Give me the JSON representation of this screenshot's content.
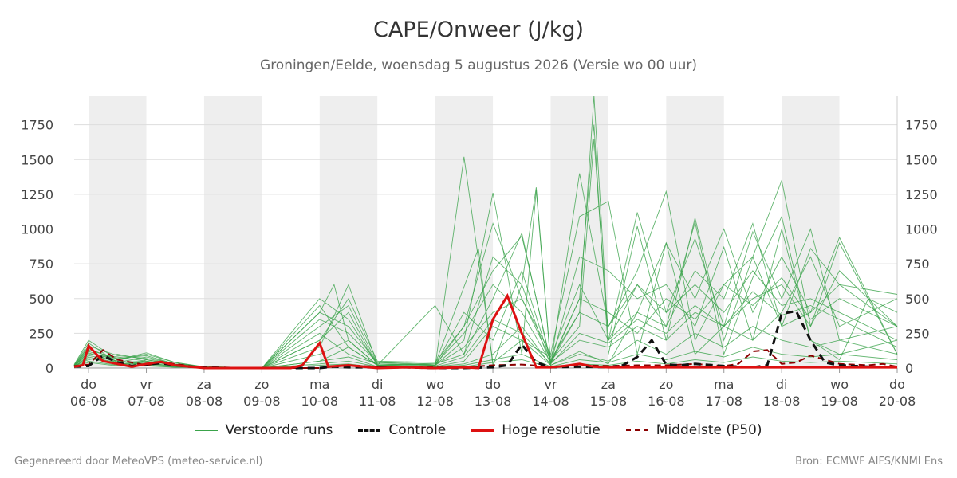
{
  "title": "CAPE/Onweer (J/kg)",
  "subtitle": "Groningen/Eelde, woensdag  5 augustus 2026 (Versie wo 00 uur)",
  "footer": {
    "left": "Gegenereerd door MeteoVPS (meteo-service.nl)",
    "right": "Bron: ECMWF AIFS/KNMI Ens"
  },
  "colors": {
    "ensemble": "#3aa34a",
    "control": "#111111",
    "high_res": "#dd1111",
    "median": "#8b0000",
    "weekend_shade": "#eeeeee",
    "grid": "#dddddd"
  },
  "legend": {
    "ensemble": "Verstoorde runs",
    "control": "Controle",
    "high_res": "Hoge resolutie",
    "median": "Middelste (P50)"
  },
  "chart_data": {
    "type": "line",
    "x_unit": "days",
    "x_range": [
      5.75,
      20.0
    ],
    "ylim": [
      0,
      1960
    ],
    "yticks": [
      0,
      250,
      500,
      750,
      1000,
      1250,
      1500,
      1750
    ],
    "grid": true,
    "legend_position": "bottom",
    "x_ticks": [
      {
        "x": 6,
        "day": "do",
        "date": "06-08"
      },
      {
        "x": 7,
        "day": "vr",
        "date": "07-08"
      },
      {
        "x": 8,
        "day": "za",
        "date": "08-08"
      },
      {
        "x": 9,
        "day": "zo",
        "date": "09-08"
      },
      {
        "x": 10,
        "day": "ma",
        "date": "10-08"
      },
      {
        "x": 11,
        "day": "di",
        "date": "11-08"
      },
      {
        "x": 12,
        "day": "wo",
        "date": "12-08"
      },
      {
        "x": 13,
        "day": "do",
        "date": "13-08"
      },
      {
        "x": 14,
        "day": "vr",
        "date": "14-08"
      },
      {
        "x": 15,
        "day": "za",
        "date": "15-08"
      },
      {
        "x": 16,
        "day": "zo",
        "date": "16-08"
      },
      {
        "x": 17,
        "day": "ma",
        "date": "17-08"
      },
      {
        "x": 18,
        "day": "di",
        "date": "18-08"
      },
      {
        "x": 19,
        "day": "wo",
        "date": "19-08"
      },
      {
        "x": 20,
        "day": "do",
        "date": "20-08"
      }
    ],
    "shaded_bands": [
      [
        6,
        7
      ],
      [
        8,
        9
      ],
      [
        10,
        11
      ],
      [
        12,
        13
      ],
      [
        14,
        15
      ],
      [
        16,
        17
      ],
      [
        18,
        19
      ]
    ],
    "control": {
      "x": [
        5.75,
        6,
        6.25,
        6.5,
        6.75,
        7,
        7.25,
        7.5,
        7.75,
        8,
        8.5,
        9,
        9.5,
        10,
        10.25,
        10.5,
        11,
        11.5,
        12,
        12.5,
        13,
        13.25,
        13.5,
        13.75,
        14,
        14.5,
        15,
        15.25,
        15.5,
        15.75,
        16,
        16.25,
        16.5,
        17,
        17.5,
        17.75,
        18,
        18.25,
        18.5,
        18.75,
        19,
        19.5,
        20
      ],
      "y": [
        10,
        15,
        90,
        40,
        15,
        25,
        35,
        20,
        10,
        5,
        0,
        0,
        0,
        0,
        10,
        5,
        5,
        5,
        0,
        0,
        5,
        20,
        170,
        40,
        5,
        10,
        5,
        20,
        80,
        200,
        25,
        20,
        30,
        15,
        5,
        20,
        390,
        410,
        200,
        40,
        20,
        10,
        5
      ]
    },
    "high_res": {
      "x": [
        5.75,
        5.9,
        6,
        6.25,
        6.5,
        6.75,
        7,
        7.25,
        7.5,
        7.75,
        8,
        8.5,
        9,
        9.5,
        9.7,
        10,
        10.15,
        10.5,
        10.75,
        11,
        11.5,
        12,
        12.5,
        12.75,
        13,
        13.25,
        13.5,
        13.75,
        14,
        14.25,
        14.5,
        14.75,
        15,
        15.5,
        16,
        16.5,
        17,
        17.5,
        18,
        18.5,
        19,
        19.5,
        20
      ],
      "y": [
        10,
        20,
        160,
        50,
        30,
        10,
        30,
        45,
        20,
        10,
        0,
        0,
        0,
        0,
        20,
        180,
        10,
        20,
        10,
        0,
        5,
        0,
        5,
        0,
        350,
        520,
        250,
        5,
        5,
        15,
        30,
        10,
        5,
        5,
        5,
        5,
        5,
        5,
        5,
        5,
        5,
        5,
        5
      ]
    },
    "median": {
      "x": [
        5.75,
        6,
        6.25,
        6.5,
        6.75,
        7,
        7.25,
        7.5,
        7.75,
        8,
        8.5,
        9,
        9.5,
        10,
        10.5,
        11,
        11.5,
        12,
        12.5,
        13,
        13.5,
        14,
        14.5,
        15,
        15.5,
        16,
        16.5,
        17,
        17.25,
        17.5,
        17.75,
        18,
        18.25,
        18.5,
        18.75,
        19,
        19.5,
        19.75,
        20
      ],
      "y": [
        15,
        25,
        130,
        60,
        40,
        20,
        40,
        30,
        15,
        5,
        0,
        0,
        0,
        0,
        20,
        10,
        10,
        5,
        5,
        20,
        25,
        10,
        20,
        15,
        20,
        20,
        30,
        15,
        30,
        120,
        130,
        30,
        40,
        90,
        60,
        30,
        20,
        30,
        10
      ]
    },
    "series": [
      {
        "x": [
          5.75,
          6,
          6.25,
          6.5,
          6.75,
          7,
          7.5,
          8,
          9,
          10,
          10.5,
          11,
          12,
          12.5,
          13,
          13.5,
          14,
          14.5,
          15,
          15.5,
          16,
          16.5,
          17,
          17.5,
          18,
          18.5,
          19,
          19.5,
          20
        ],
        "y": [
          20,
          150,
          60,
          40,
          20,
          60,
          30,
          10,
          0,
          50,
          150,
          20,
          10,
          1520,
          40,
          200,
          20,
          120,
          30,
          400,
          900,
          100,
          300,
          200,
          1000,
          200,
          60,
          500,
          400
        ]
      },
      {
        "x": [
          5.75,
          6,
          6.5,
          7,
          7.5,
          8,
          9,
          10,
          10.25,
          10.5,
          11,
          12,
          12.75,
          13,
          13.5,
          13.75,
          14,
          14.5,
          14.75,
          15,
          15.5,
          16,
          16.5,
          17,
          17.5,
          18,
          18.5,
          19,
          20
        ],
        "y": [
          10,
          120,
          50,
          30,
          20,
          5,
          0,
          400,
          600,
          200,
          20,
          30,
          860,
          20,
          600,
          1300,
          40,
          400,
          1960,
          200,
          600,
          300,
          1050,
          100,
          650,
          1090,
          200,
          100,
          200
        ]
      },
      {
        "x": [
          5.75,
          6,
          6.5,
          7,
          7.5,
          8,
          9,
          10,
          10.5,
          11,
          12,
          12.5,
          13,
          13.5,
          13.75,
          14,
          14.5,
          14.75,
          15,
          15.5,
          16,
          16.5,
          17,
          17.5,
          18,
          18.5,
          19,
          20
        ],
        "y": [
          15,
          100,
          80,
          50,
          20,
          5,
          0,
          300,
          450,
          30,
          20,
          200,
          1260,
          100,
          1280,
          30,
          500,
          1750,
          100,
          1020,
          200,
          1080,
          200,
          800,
          1350,
          300,
          900,
          100
        ]
      },
      {
        "x": [
          5.75,
          6,
          6.5,
          7,
          7.5,
          8,
          9,
          10,
          10.5,
          11,
          12,
          12.5,
          13,
          13.5,
          14,
          14.5,
          14.75,
          15,
          15.5,
          16,
          16.5,
          17,
          17.5,
          18,
          18.5,
          19,
          20
        ],
        "y": [
          20,
          180,
          40,
          80,
          30,
          10,
          0,
          200,
          500,
          50,
          40,
          300,
          700,
          950,
          50,
          300,
          1650,
          200,
          1120,
          400,
          930,
          300,
          980,
          500,
          1000,
          200,
          300
        ]
      },
      {
        "x": [
          5.75,
          6,
          6.5,
          7,
          7.5,
          8,
          9,
          10,
          10.5,
          11,
          12,
          12.5,
          13,
          13.5,
          14,
          14.5,
          15,
          15.5,
          16,
          16.5,
          17,
          17.5,
          18,
          18.5,
          19,
          20
        ],
        "y": [
          10,
          80,
          30,
          40,
          10,
          5,
          0,
          500,
          350,
          20,
          450,
          100,
          800,
          600,
          20,
          1400,
          300,
          700,
          1270,
          200,
          600,
          800,
          300,
          860,
          600,
          300
        ]
      },
      {
        "x": [
          5.75,
          6,
          6.5,
          7,
          7.5,
          8,
          9,
          10,
          10.5,
          11,
          12,
          12.5,
          13,
          13.5,
          14,
          14.5,
          15,
          15.5,
          16,
          16.5,
          17,
          17.5,
          18,
          18.5,
          19,
          20
        ],
        "y": [
          25,
          200,
          60,
          100,
          40,
          10,
          0,
          150,
          600,
          30,
          20,
          300,
          1040,
          500,
          100,
          1090,
          1200,
          100,
          900,
          500,
          1000,
          400,
          800,
          400,
          940,
          100
        ]
      },
      {
        "x": [
          5.75,
          6,
          6.5,
          7,
          7.5,
          8,
          9,
          10,
          10.5,
          11,
          12,
          12.5,
          13,
          13.5,
          14,
          14.5,
          15,
          15.5,
          16,
          16.5,
          17,
          17.5,
          18,
          18.5,
          19,
          20
        ],
        "y": [
          15,
          60,
          100,
          60,
          20,
          5,
          0,
          400,
          300,
          40,
          30,
          100,
          500,
          970,
          30,
          800,
          700,
          500,
          600,
          300,
          870,
          200,
          400,
          800,
          300,
          500
        ]
      },
      {
        "x": [
          5.75,
          6,
          6.5,
          7,
          7.5,
          8,
          9,
          10,
          10.5,
          11,
          12,
          12.5,
          13,
          13.5,
          14,
          14.5,
          15,
          15.5,
          16,
          16.5,
          17,
          17.5,
          18,
          18.5,
          19,
          20
        ],
        "y": [
          10,
          90,
          50,
          20,
          10,
          5,
          0,
          100,
          200,
          20,
          10,
          50,
          300,
          200,
          80,
          600,
          200,
          400,
          300,
          700,
          500,
          1040,
          300,
          400,
          600,
          530
        ]
      },
      {
        "x": [
          5.75,
          6,
          6.5,
          7,
          7.5,
          8,
          9,
          10,
          10.5,
          11,
          12,
          12.5,
          13,
          13.5,
          14,
          14.5,
          15,
          15.5,
          16,
          16.5,
          17,
          17.5,
          18,
          18.5,
          19,
          20
        ],
        "y": [
          20,
          110,
          40,
          50,
          20,
          5,
          0,
          250,
          100,
          30,
          20,
          400,
          200,
          700,
          40,
          200,
          150,
          300,
          200,
          400,
          300,
          500,
          600,
          300,
          700,
          300
        ]
      },
      {
        "x": [
          5.75,
          6,
          6.5,
          7,
          7.5,
          8,
          9,
          10,
          10.5,
          11,
          12,
          12.5,
          13,
          13.5,
          14,
          14.5,
          15,
          15.5,
          16,
          16.5,
          17,
          17.5,
          18,
          18.5,
          19,
          20
        ],
        "y": [
          10,
          70,
          30,
          30,
          10,
          5,
          0,
          50,
          80,
          10,
          10,
          30,
          100,
          300,
          20,
          100,
          50,
          200,
          100,
          250,
          150,
          300,
          200,
          150,
          200,
          100
        ]
      },
      {
        "x": [
          5.75,
          6,
          6.5,
          7,
          7.5,
          8,
          9,
          10,
          10.5,
          11,
          12,
          12.5,
          13,
          13.5,
          14,
          14.5,
          15,
          15.5,
          16,
          16.5,
          17,
          17.5,
          18,
          18.5,
          19,
          20
        ],
        "y": [
          15,
          130,
          70,
          90,
          30,
          10,
          0,
          350,
          250,
          40,
          20,
          150,
          400,
          500,
          60,
          400,
          300,
          600,
          400,
          600,
          400,
          700,
          450,
          500,
          400,
          200
        ]
      },
      {
        "x": [
          5.75,
          6,
          6.5,
          7,
          7.5,
          8,
          9,
          10,
          10.5,
          11,
          12,
          12.5,
          13,
          13.5,
          14,
          14.5,
          15,
          15.5,
          16,
          16.5,
          17,
          17.5,
          18,
          18.5,
          19,
          20
        ],
        "y": [
          10,
          50,
          20,
          20,
          5,
          5,
          0,
          30,
          50,
          10,
          5,
          20,
          60,
          100,
          10,
          60,
          40,
          100,
          60,
          120,
          80,
          150,
          100,
          80,
          100,
          60
        ]
      },
      {
        "x": [
          5.75,
          6,
          6.5,
          7,
          7.5,
          8,
          9,
          10,
          10.5,
          11,
          12,
          12.5,
          13,
          13.5,
          14,
          14.5,
          15,
          15.5,
          16,
          16.5,
          17,
          17.5,
          18,
          18.5,
          19,
          20
        ],
        "y": [
          20,
          160,
          90,
          70,
          30,
          10,
          0,
          450,
          150,
          20,
          30,
          250,
          600,
          400,
          40,
          500,
          400,
          250,
          500,
          350,
          600,
          450,
          650,
          350,
          500,
          300
        ]
      },
      {
        "x": [
          5.75,
          6,
          6.5,
          7,
          7.5,
          8,
          9,
          10,
          10.5,
          11,
          12,
          12.5,
          13,
          13.5,
          14,
          14.5,
          15,
          15.5,
          16,
          16.5,
          17,
          17.5,
          18,
          18.5,
          19,
          20
        ],
        "y": [
          10,
          40,
          15,
          15,
          5,
          5,
          0,
          20,
          30,
          5,
          5,
          10,
          40,
          60,
          5,
          30,
          20,
          50,
          30,
          60,
          40,
          80,
          50,
          40,
          50,
          30
        ]
      },
      {
        "x": [
          5.75,
          6,
          6.5,
          7,
          7.5,
          8,
          9,
          10,
          10.5,
          11,
          12,
          12.5,
          13,
          13.5,
          14,
          14.5,
          15,
          15.5,
          16,
          16.5,
          17,
          17.5,
          18,
          18.5,
          19,
          20
        ],
        "y": [
          15,
          140,
          60,
          110,
          40,
          5,
          0,
          200,
          400,
          20,
          15,
          80,
          350,
          250,
          30,
          250,
          180,
          350,
          250,
          450,
          300,
          550,
          380,
          450,
          350,
          150
        ]
      }
    ]
  }
}
